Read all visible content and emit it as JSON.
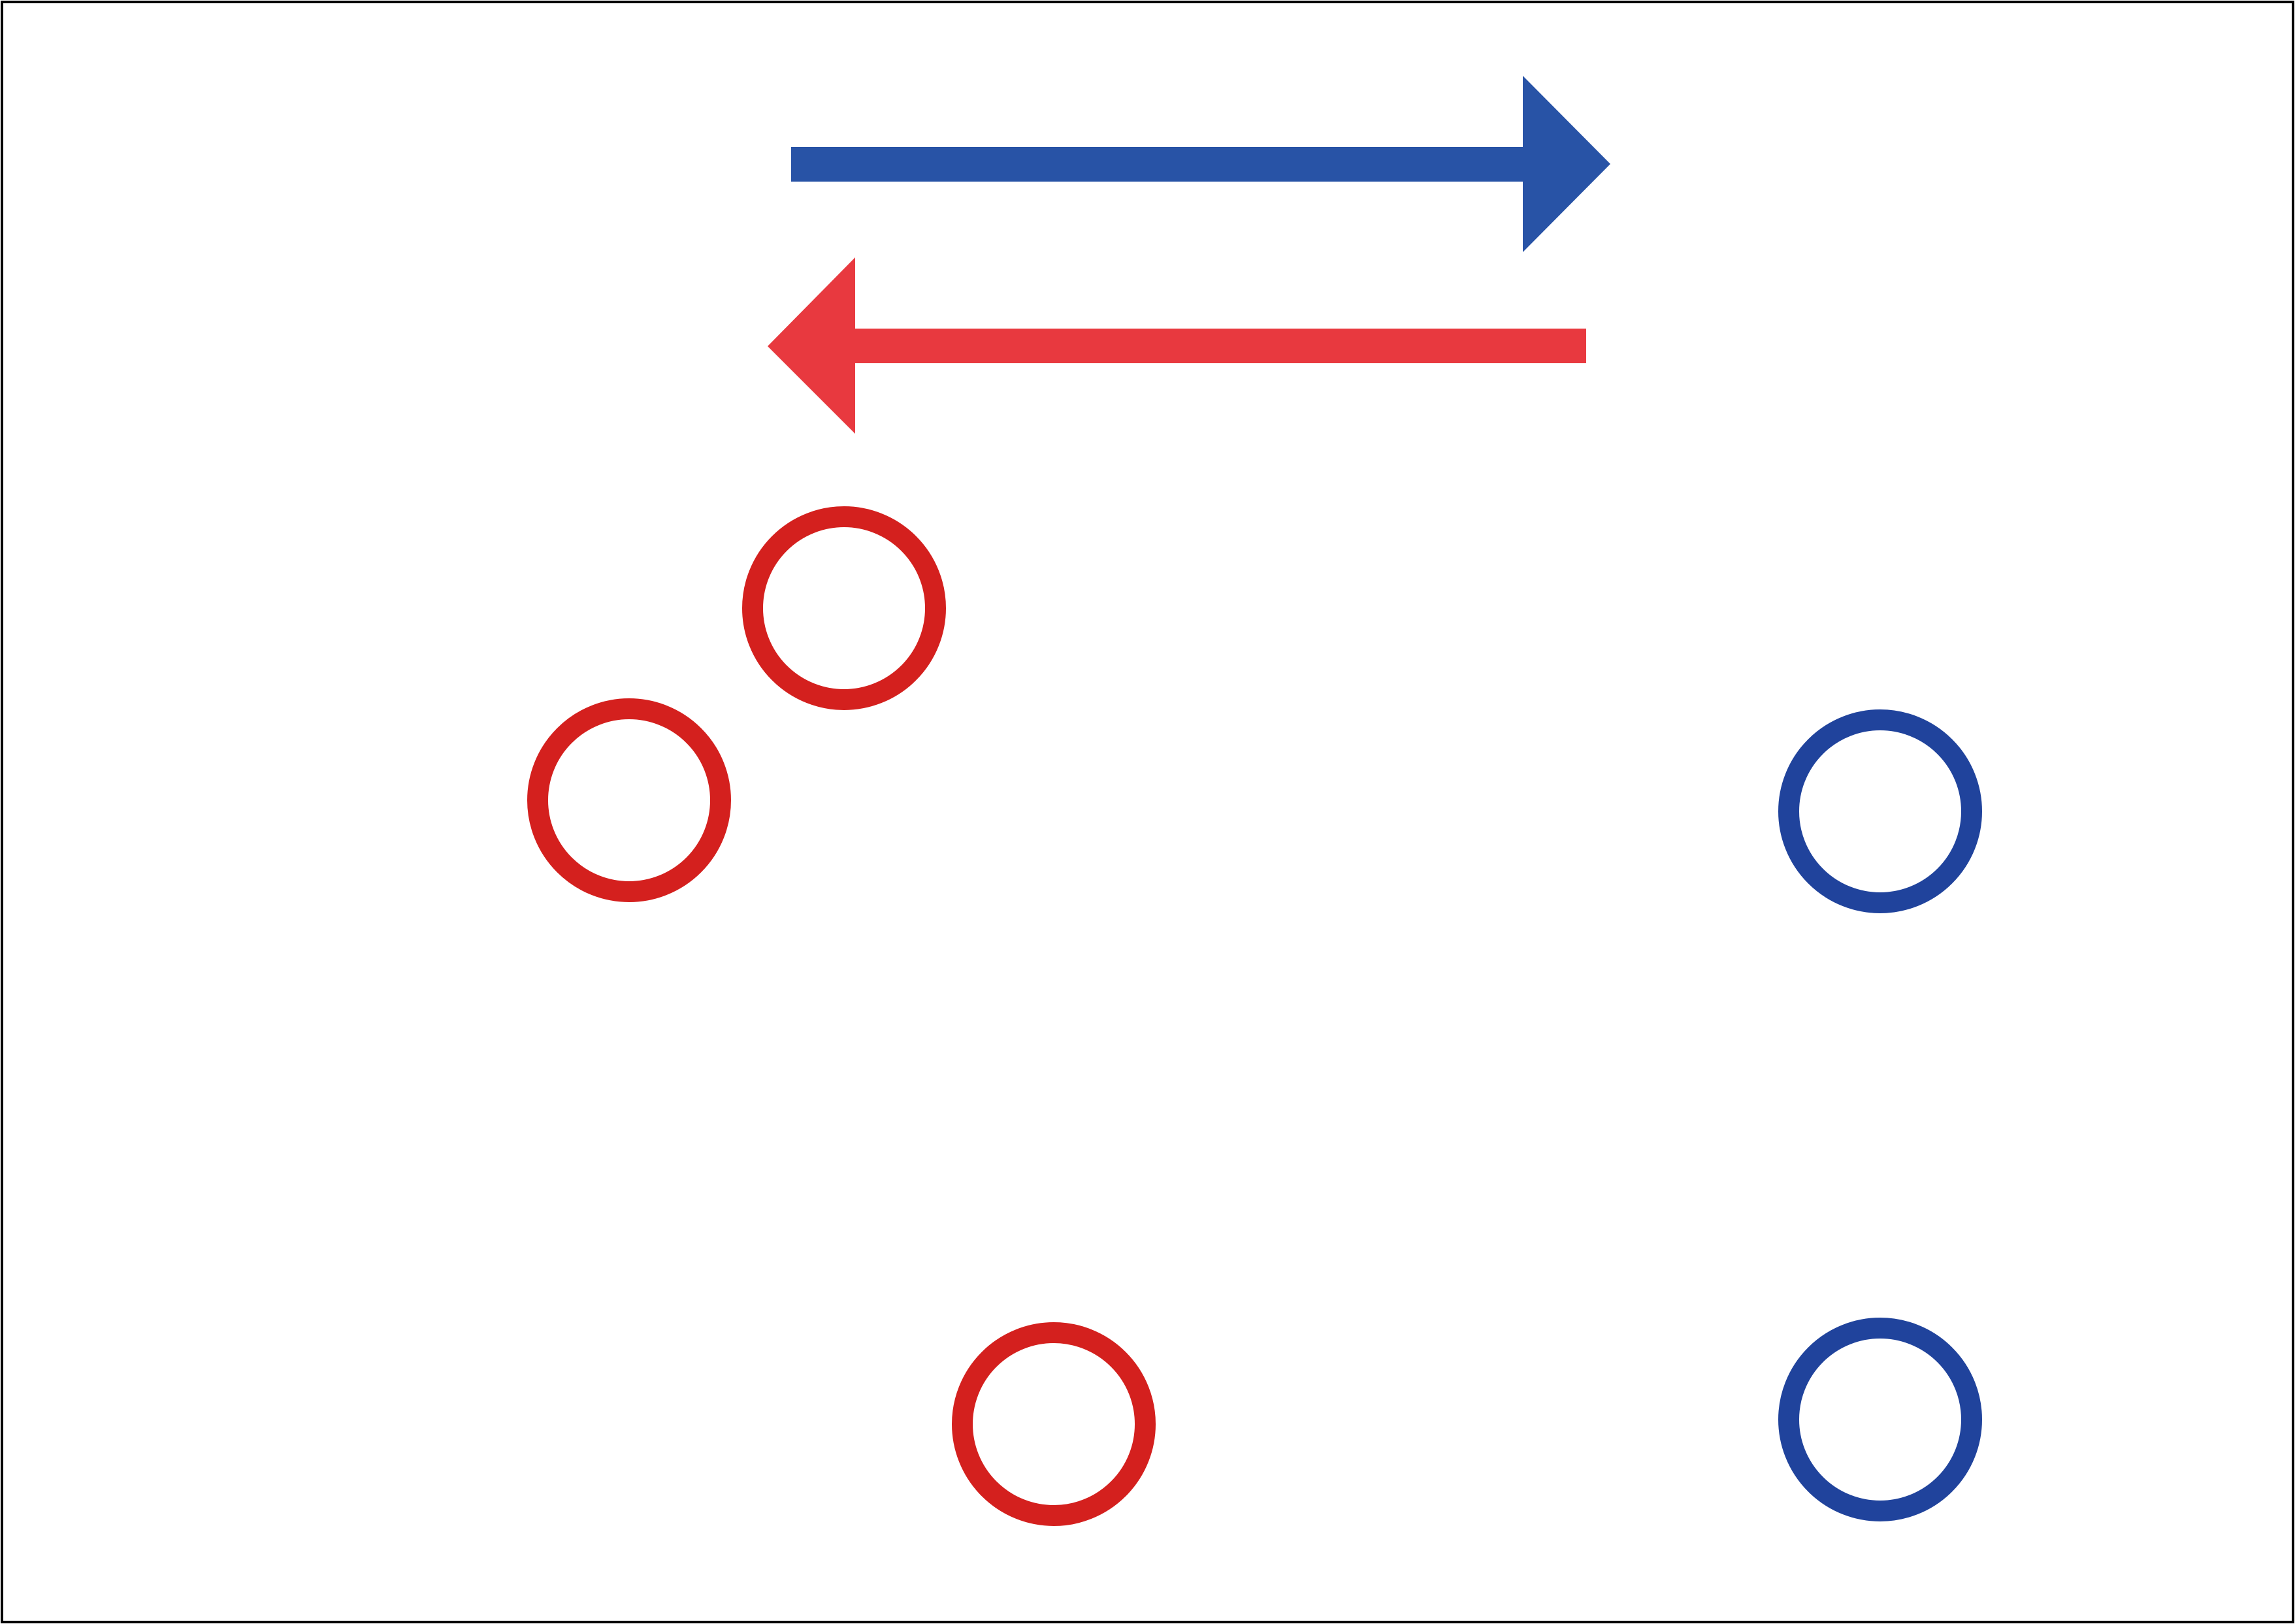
{
  "colors": {
    "background": "#ffffff",
    "frame": "#000000",
    "blue_arrow": "#2853a6",
    "red_arrow": "#e8393f",
    "red_circle": "#d4201e",
    "blue_circle": "#20439c"
  },
  "arrows": [
    {
      "name": "blue-arrow-right",
      "direction": "right",
      "color_key": "blue_arrow"
    },
    {
      "name": "red-arrow-left",
      "direction": "left",
      "color_key": "red_arrow"
    }
  ],
  "circles": [
    {
      "name": "red-circle",
      "color_key": "red_circle"
    },
    {
      "name": "red-circle",
      "color_key": "red_circle"
    },
    {
      "name": "red-circle",
      "color_key": "red_circle"
    },
    {
      "name": "blue-circle",
      "color_key": "blue_circle"
    },
    {
      "name": "blue-circle",
      "color_key": "blue_circle"
    }
  ]
}
